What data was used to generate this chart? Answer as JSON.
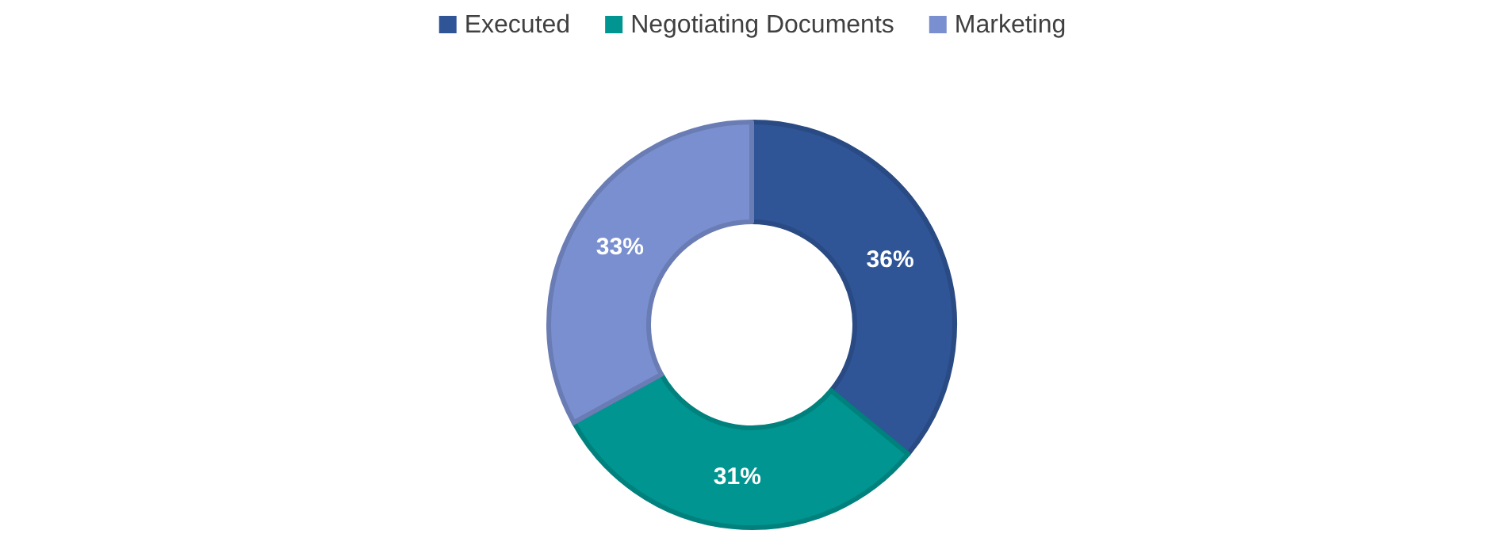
{
  "chart_data": {
    "type": "donut",
    "categories": [
      "Executed",
      "Negotiating Documents",
      "Marketing"
    ],
    "values": [
      36,
      31,
      33
    ],
    "colors": [
      "#2f5597",
      "#009590",
      "#7a8fd0"
    ],
    "value_labels": [
      "36%",
      "31%",
      "33%"
    ],
    "legend": "top"
  }
}
